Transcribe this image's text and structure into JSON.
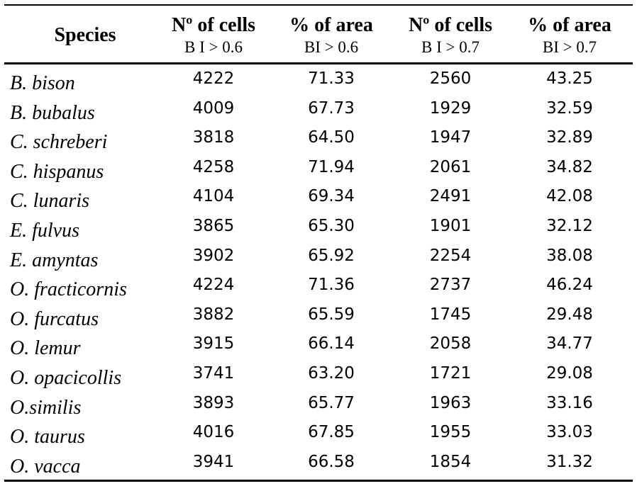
{
  "table": {
    "headers": [
      {
        "main": "Species",
        "sub": ""
      },
      {
        "main": "Nº of cells",
        "sub": "B I > 0.6"
      },
      {
        "main": "% of area",
        "sub": "BI > 0.6"
      },
      {
        "main": "Nº of cells",
        "sub": "B I > 0.7"
      },
      {
        "main": "% of area",
        "sub": "BI > 0.7"
      }
    ],
    "rows": [
      {
        "species": "B. bison",
        "cells06": "4222",
        "area06": "71.33",
        "cells07": "2560",
        "area07": "43.25"
      },
      {
        "species": "B. bubalus",
        "cells06": "4009",
        "area06": "67.73",
        "cells07": "1929",
        "area07": "32.59"
      },
      {
        "species": "C. schreberi",
        "cells06": "3818",
        "area06": "64.50",
        "cells07": "1947",
        "area07": "32.89"
      },
      {
        "species": "C. hispanus",
        "cells06": "4258",
        "area06": "71.94",
        "cells07": "2061",
        "area07": "34.82"
      },
      {
        "species": "C. lunaris",
        "cells06": "4104",
        "area06": "69.34",
        "cells07": "2491",
        "area07": "42.08"
      },
      {
        "species": "E. fulvus",
        "cells06": "3865",
        "area06": "65.30",
        "cells07": "1901",
        "area07": "32.12"
      },
      {
        "species": "E. amyntas",
        "cells06": "3902",
        "area06": "65.92",
        "cells07": "2254",
        "area07": "38.08"
      },
      {
        "species": "O. fracticornis",
        "cells06": "4224",
        "area06": "71.36",
        "cells07": "2737",
        "area07": "46.24"
      },
      {
        "species": "O. furcatus",
        "cells06": "3882",
        "area06": "65.59",
        "cells07": "1745",
        "area07": "29.48"
      },
      {
        "species": "O. lemur",
        "cells06": "3915",
        "area06": "66.14",
        "cells07": "2058",
        "area07": "34.77"
      },
      {
        "species": "O. opacicollis",
        "cells06": "3741",
        "area06": "63.20",
        "cells07": "1721",
        "area07": "29.08"
      },
      {
        "species": "O.similis",
        "cells06": "3893",
        "area06": "65.77",
        "cells07": "1963",
        "area07": "33.16"
      },
      {
        "species": "O. taurus",
        "cells06": "4016",
        "area06": "67.85",
        "cells07": "1955",
        "area07": "33.03"
      },
      {
        "species": "O. vacca",
        "cells06": "3941",
        "area06": "66.58",
        "cells07": "1854",
        "area07": "31.32"
      }
    ]
  }
}
